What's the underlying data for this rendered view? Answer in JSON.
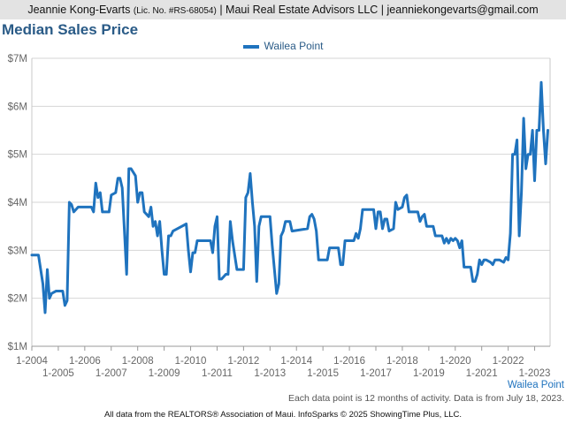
{
  "header": {
    "agent_name": "Jeannie Kong-Evarts",
    "license": "(Lic. No. #RS-68054)",
    "rest": "| Maui Real Estate Advisors LLC | jeanniekongevarts@gmail.com"
  },
  "footer": {
    "note": "Each data point is 12 months of activity. Data is from July 18, 2023.",
    "credit": "All data from the REALTORS® Association of Maui. InfoSparks © 2025 ShowingTime Plus, LLC."
  },
  "colors": {
    "series": "#1f73be",
    "title": "#2a5b87",
    "header_bg": "#e3e3e3"
  },
  "chart_data": {
    "type": "line",
    "title": "Median Sales Price",
    "xlabel": "",
    "ylabel": "",
    "legend_position": "top-center",
    "grid": true,
    "ylim": [
      1000000,
      7000000
    ],
    "xlim": [
      "2004-01",
      "2023-08"
    ],
    "y_ticks": [
      {
        "value": 1000000,
        "label": "$1M"
      },
      {
        "value": 2000000,
        "label": "$2M"
      },
      {
        "value": 3000000,
        "label": "$3M"
      },
      {
        "value": 4000000,
        "label": "$4M"
      },
      {
        "value": 5000000,
        "label": "$5M"
      },
      {
        "value": 6000000,
        "label": "$6M"
      },
      {
        "value": 7000000,
        "label": "$7M"
      }
    ],
    "x_ticks": [
      "1-2004",
      "1-2005",
      "1-2006",
      "1-2007",
      "1-2008",
      "1-2009",
      "1-2010",
      "1-2011",
      "1-2012",
      "1-2013",
      "1-2014",
      "1-2015",
      "1-2016",
      "1-2017",
      "1-2018",
      "1-2019",
      "1-2020",
      "1-2021",
      "1-2022",
      "1-2023"
    ],
    "series_label_end": "Wailea Point",
    "series": [
      {
        "name": "Wailea Point",
        "points": [
          [
            "2004-01",
            2900000
          ],
          [
            "2004-04",
            2900000
          ],
          [
            "2004-06",
            2300000
          ],
          [
            "2004-07",
            1700000
          ],
          [
            "2004-08",
            2600000
          ],
          [
            "2004-09",
            2000000
          ],
          [
            "2004-10",
            2100000
          ],
          [
            "2004-12",
            2150000
          ],
          [
            "2005-03",
            2150000
          ],
          [
            "2005-04",
            1850000
          ],
          [
            "2005-05",
            1950000
          ],
          [
            "2005-06",
            4000000
          ],
          [
            "2005-07",
            3950000
          ],
          [
            "2005-08",
            3800000
          ],
          [
            "2005-10",
            3900000
          ],
          [
            "2006-04",
            3900000
          ],
          [
            "2006-05",
            3800000
          ],
          [
            "2006-06",
            4400000
          ],
          [
            "2006-07",
            4100000
          ],
          [
            "2006-08",
            4200000
          ],
          [
            "2006-09",
            3800000
          ],
          [
            "2006-12",
            3800000
          ],
          [
            "2007-01",
            4150000
          ],
          [
            "2007-03",
            4200000
          ],
          [
            "2007-04",
            4500000
          ],
          [
            "2007-05",
            4500000
          ],
          [
            "2007-06",
            4300000
          ],
          [
            "2007-07",
            3400000
          ],
          [
            "2007-08",
            2500000
          ],
          [
            "2007-09",
            4700000
          ],
          [
            "2007-10",
            4700000
          ],
          [
            "2007-12",
            4550000
          ],
          [
            "2008-01",
            4000000
          ],
          [
            "2008-02",
            4200000
          ],
          [
            "2008-03",
            4200000
          ],
          [
            "2008-04",
            3800000
          ],
          [
            "2008-06",
            3700000
          ],
          [
            "2008-07",
            3900000
          ],
          [
            "2008-08",
            3500000
          ],
          [
            "2008-09",
            3600000
          ],
          [
            "2008-10",
            3300000
          ],
          [
            "2008-11",
            3600000
          ],
          [
            "2008-12",
            3000000
          ],
          [
            "2009-01",
            2500000
          ],
          [
            "2009-02",
            2500000
          ],
          [
            "2009-03",
            3300000
          ],
          [
            "2009-04",
            3300000
          ],
          [
            "2009-05",
            3400000
          ],
          [
            "2009-11",
            3550000
          ],
          [
            "2009-12",
            3000000
          ],
          [
            "2010-01",
            2550000
          ],
          [
            "2010-02",
            2950000
          ],
          [
            "2010-03",
            2950000
          ],
          [
            "2010-04",
            3200000
          ],
          [
            "2010-10",
            3200000
          ],
          [
            "2010-11",
            2950000
          ],
          [
            "2010-12",
            3500000
          ],
          [
            "2011-01",
            3700000
          ],
          [
            "2011-02",
            2400000
          ],
          [
            "2011-03",
            2400000
          ],
          [
            "2011-05",
            2500000
          ],
          [
            "2011-06",
            2500000
          ],
          [
            "2011-07",
            3600000
          ],
          [
            "2011-08",
            3200000
          ],
          [
            "2011-09",
            2900000
          ],
          [
            "2011-10",
            2600000
          ],
          [
            "2012-01",
            2600000
          ],
          [
            "2012-02",
            4100000
          ],
          [
            "2012-03",
            4200000
          ],
          [
            "2012-04",
            4600000
          ],
          [
            "2012-05",
            4000000
          ],
          [
            "2012-06",
            3500000
          ],
          [
            "2012-07",
            2350000
          ],
          [
            "2012-08",
            3500000
          ],
          [
            "2012-09",
            3700000
          ],
          [
            "2012-10",
            3700000
          ],
          [
            "2013-01",
            3700000
          ],
          [
            "2013-02",
            3100000
          ],
          [
            "2013-03",
            2600000
          ],
          [
            "2013-04",
            2100000
          ],
          [
            "2013-05",
            2300000
          ],
          [
            "2013-06",
            3300000
          ],
          [
            "2013-07",
            3400000
          ],
          [
            "2013-08",
            3600000
          ],
          [
            "2013-10",
            3600000
          ],
          [
            "2013-11",
            3400000
          ],
          [
            "2014-06",
            3450000
          ],
          [
            "2014-07",
            3700000
          ],
          [
            "2014-08",
            3750000
          ],
          [
            "2014-09",
            3650000
          ],
          [
            "2014-10",
            3400000
          ],
          [
            "2014-11",
            2800000
          ],
          [
            "2015-03",
            2800000
          ],
          [
            "2015-04",
            3050000
          ],
          [
            "2015-08",
            3050000
          ],
          [
            "2015-09",
            2700000
          ],
          [
            "2015-10",
            2700000
          ],
          [
            "2015-11",
            3200000
          ],
          [
            "2016-03",
            3200000
          ],
          [
            "2016-04",
            3350000
          ],
          [
            "2016-05",
            3250000
          ],
          [
            "2016-06",
            3450000
          ],
          [
            "2016-07",
            3850000
          ],
          [
            "2016-12",
            3850000
          ],
          [
            "2017-01",
            3450000
          ],
          [
            "2017-02",
            3800000
          ],
          [
            "2017-03",
            3800000
          ],
          [
            "2017-04",
            3450000
          ],
          [
            "2017-05",
            3650000
          ],
          [
            "2017-06",
            3650000
          ],
          [
            "2017-07",
            3400000
          ],
          [
            "2017-09",
            3450000
          ],
          [
            "2017-10",
            4000000
          ],
          [
            "2017-11",
            3850000
          ],
          [
            "2018-01",
            3900000
          ],
          [
            "2018-02",
            4100000
          ],
          [
            "2018-03",
            4150000
          ],
          [
            "2018-04",
            3800000
          ],
          [
            "2018-08",
            3800000
          ],
          [
            "2018-09",
            3600000
          ],
          [
            "2018-10",
            3700000
          ],
          [
            "2018-11",
            3750000
          ],
          [
            "2018-12",
            3500000
          ],
          [
            "2019-03",
            3500000
          ],
          [
            "2019-04",
            3300000
          ],
          [
            "2019-07",
            3300000
          ],
          [
            "2019-08",
            3150000
          ],
          [
            "2019-09",
            3250000
          ],
          [
            "2019-10",
            3150000
          ],
          [
            "2019-11",
            3250000
          ],
          [
            "2019-12",
            3200000
          ],
          [
            "2020-01",
            3250000
          ],
          [
            "2020-02",
            3200000
          ],
          [
            "2020-03",
            3050000
          ],
          [
            "2020-04",
            3200000
          ],
          [
            "2020-05",
            2650000
          ],
          [
            "2020-06",
            2650000
          ],
          [
            "2020-08",
            2650000
          ],
          [
            "2020-09",
            2350000
          ],
          [
            "2020-10",
            2350000
          ],
          [
            "2020-11",
            2500000
          ],
          [
            "2020-12",
            2800000
          ],
          [
            "2021-01",
            2700000
          ],
          [
            "2021-02",
            2800000
          ],
          [
            "2021-03",
            2800000
          ],
          [
            "2021-05",
            2750000
          ],
          [
            "2021-06",
            2700000
          ],
          [
            "2021-07",
            2800000
          ],
          [
            "2021-09",
            2800000
          ],
          [
            "2021-11",
            2750000
          ],
          [
            "2021-12",
            2850000
          ],
          [
            "2022-01",
            2800000
          ],
          [
            "2022-02",
            3350000
          ],
          [
            "2022-03",
            5000000
          ],
          [
            "2022-04",
            5000000
          ],
          [
            "2022-05",
            5300000
          ],
          [
            "2022-06",
            3300000
          ],
          [
            "2022-07",
            4200000
          ],
          [
            "2022-08",
            5750000
          ],
          [
            "2022-09",
            4700000
          ],
          [
            "2022-10",
            5000000
          ],
          [
            "2022-11",
            5000000
          ],
          [
            "2022-12",
            5500000
          ],
          [
            "2023-01",
            4450000
          ],
          [
            "2023-02",
            5500000
          ],
          [
            "2023-03",
            5500000
          ],
          [
            "2023-04",
            6500000
          ],
          [
            "2023-05",
            5500000
          ],
          [
            "2023-06",
            4800000
          ],
          [
            "2023-07",
            5500000
          ]
        ]
      }
    ]
  }
}
